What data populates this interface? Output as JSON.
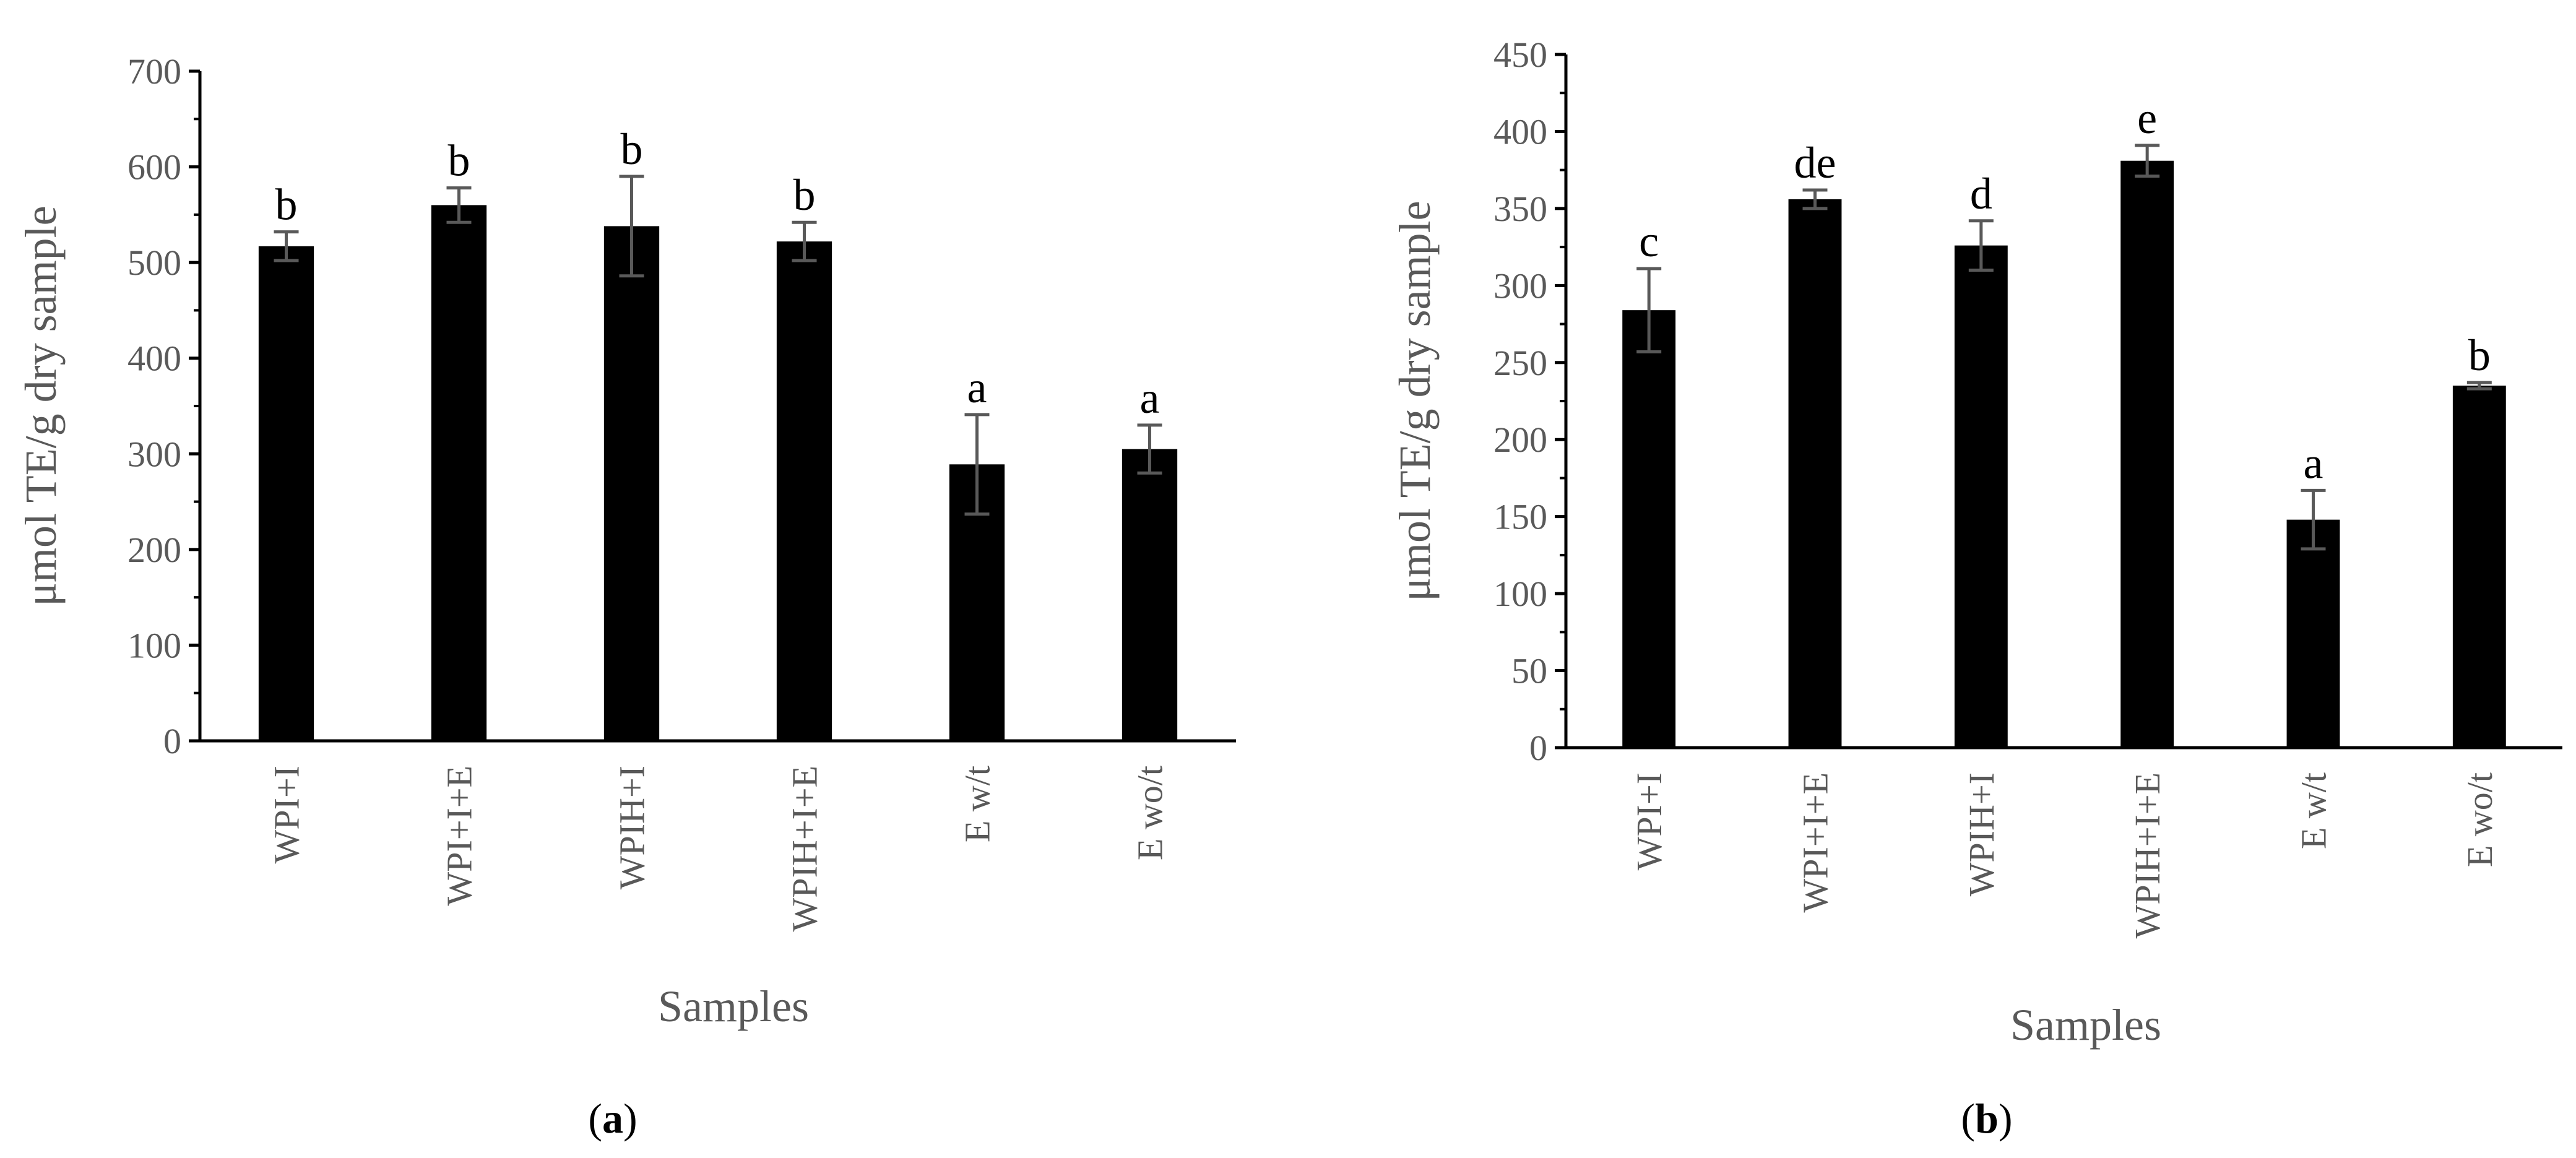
{
  "colors": {
    "bar": "#000000",
    "axis": "#000000",
    "error": "#595959",
    "text": "#595959"
  },
  "chart_data": [
    {
      "type": "bar",
      "panel_label": "a",
      "categories": [
        "WPI+I",
        "WPI+I+E",
        "WPIH+I",
        "WPIH+I+E",
        "E w/t",
        "E wo/t"
      ],
      "values": [
        517,
        560,
        538,
        522,
        289,
        305
      ],
      "errors": [
        15,
        18,
        52,
        20,
        52,
        25
      ],
      "letters": [
        "b",
        "b",
        "b",
        "b",
        "a",
        "a"
      ],
      "xlabel": "Samples",
      "ylabel": "μmol TE/g dry sample",
      "ylim": [
        0,
        700
      ],
      "ytick_step": 100,
      "grid": false
    },
    {
      "type": "bar",
      "panel_label": "b",
      "categories": [
        "WPI+I",
        "WPI+I+E",
        "WPIH+I",
        "WPIH+I+E",
        "E w/t",
        "E wo/t"
      ],
      "values": [
        284,
        356,
        326,
        381,
        148,
        235
      ],
      "errors": [
        27,
        6,
        16,
        10,
        19,
        2
      ],
      "letters": [
        "c",
        "de",
        "d",
        "e",
        "a",
        "b"
      ],
      "xlabel": "Samples",
      "ylabel": "μmol TE/g dry sample",
      "ylim": [
        0,
        450
      ],
      "ytick_step": 50,
      "grid": false
    }
  ]
}
